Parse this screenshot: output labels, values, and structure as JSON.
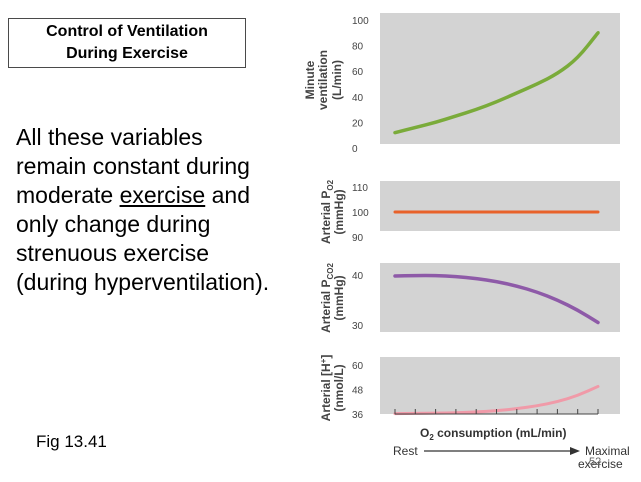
{
  "slide": {
    "title_line1": "Control of Ventilation",
    "title_line2": "During Exercise",
    "body_lines": [
      "All these variables",
      "remain constant during",
      "moderate ",
      "exercise",
      " and",
      "only change during",
      "strenuous exercise",
      "(during hyperventilation)."
    ],
    "figure_label": "Fig 13.41",
    "page_number": "52"
  },
  "chart_data": [
    {
      "type": "line",
      "ylabel_line1": "Minute",
      "ylabel_line2": "ventilation",
      "ylabel_line3": "(L/min)",
      "ylim": [
        0,
        100
      ],
      "yticks": [
        "0",
        "20",
        "40",
        "60",
        "80",
        "100"
      ],
      "x": [
        0,
        0.1,
        0.2,
        0.3,
        0.4,
        0.5,
        0.6,
        0.7,
        0.8,
        0.9,
        1.0
      ],
      "values": [
        12,
        16,
        20,
        25,
        30,
        36,
        43,
        50,
        58,
        70,
        90
      ],
      "color": "#7aab3a"
    },
    {
      "type": "line",
      "ylabel_line1": "Arterial P",
      "ylabel_sub1": "O2",
      "ylabel_line2": "(mmHg)",
      "ylim": [
        90,
        110
      ],
      "yticks": [
        "90",
        "100",
        "110"
      ],
      "x": [
        0,
        1.0
      ],
      "values": [
        100,
        100
      ],
      "color": "#e8622a"
    },
    {
      "type": "line",
      "ylabel_line1": "Arterial P",
      "ylabel_sub1": "CO2",
      "ylabel_line2": "(mmHg)",
      "ylim": [
        30,
        40
      ],
      "yticks": [
        "30",
        "40"
      ],
      "x": [
        0,
        0.1,
        0.2,
        0.3,
        0.4,
        0.5,
        0.6,
        0.7,
        0.8,
        0.9,
        1.0
      ],
      "values": [
        39.8,
        39.9,
        39.9,
        39.7,
        39.3,
        38.7,
        37.8,
        36.6,
        35.0,
        33.0,
        30.5
      ],
      "color": "#8e5aa8"
    },
    {
      "type": "line",
      "ylabel_line1": "Arterial [H",
      "ylabel_sup1": "+",
      "ylabel_line1_end": "]",
      "ylabel_line2": "(nmol/L)",
      "ylim": [
        36,
        60
      ],
      "yticks": [
        "36",
        "48",
        "60"
      ],
      "x": [
        0,
        0.1,
        0.2,
        0.3,
        0.4,
        0.5,
        0.6,
        0.7,
        0.8,
        0.9,
        1.0
      ],
      "values": [
        36.2,
        36.3,
        36.4,
        36.6,
        37.0,
        37.6,
        38.6,
        40.0,
        42.0,
        45.0,
        49.5
      ],
      "color": "#f09aa8"
    }
  ],
  "xaxis": {
    "title_main": "O",
    "title_sub": "2",
    "title_rest": " consumption (mL/min)",
    "left_label": "Rest",
    "right_label_line1": "Maximal",
    "right_label_line2": "exercise"
  }
}
